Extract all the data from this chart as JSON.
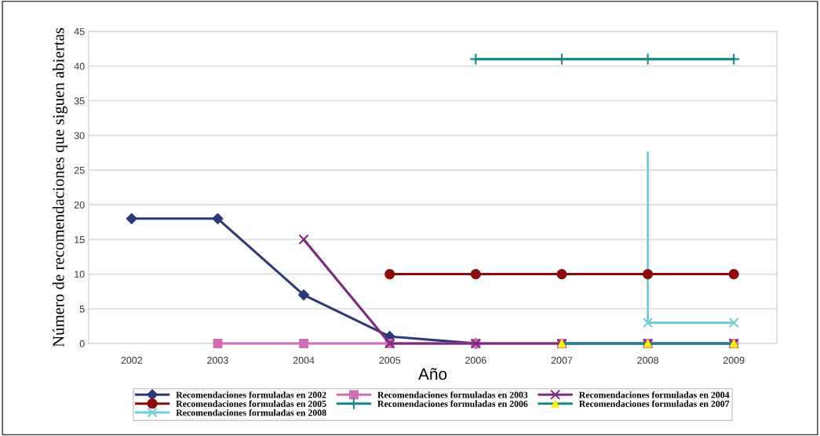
{
  "chart_data": {
    "type": "line",
    "xlabel": "Año",
    "ylabel": "Número de recomendaciones que siguen abiertas",
    "categories": [
      "2002",
      "2003",
      "2004",
      "2005",
      "2006",
      "2007",
      "2008",
      "2009"
    ],
    "series": [
      {
        "name": "Recomendaciones formuladas en 2002",
        "color": "#2e3a78",
        "marker": "diamond",
        "values": [
          18,
          18,
          7,
          1,
          0,
          null,
          null,
          null
        ]
      },
      {
        "name": "Recomendaciones formuladas en 2003",
        "color": "#d36bb5",
        "marker": "square",
        "values": [
          null,
          0,
          0,
          0,
          0,
          0,
          0,
          0
        ]
      },
      {
        "name": "Recomendaciones formuladas en 2004",
        "color": "#7b2c7e",
        "marker": "cross",
        "values": [
          null,
          null,
          15,
          0,
          0,
          0,
          0,
          0
        ]
      },
      {
        "name": "Recomendaciones formuladas en 2005",
        "color": "#8b0d0d",
        "marker": "circle",
        "values": [
          null,
          null,
          null,
          10,
          10,
          10,
          10,
          10
        ]
      },
      {
        "name": "Recomendaciones formuladas en 2006",
        "color": "#178a86",
        "marker": "plus",
        "values": [
          null,
          null,
          null,
          null,
          41,
          41,
          41,
          41
        ]
      },
      {
        "name": "Recomendaciones formuladas en 2007",
        "color": "#178a86",
        "marker": "triangle",
        "colors": [
          null,
          null,
          null,
          null,
          null,
          "#ffee00",
          "#ffee00",
          "#ffee00"
        ],
        "values": [
          null,
          null,
          null,
          null,
          null,
          0,
          0,
          0
        ]
      },
      {
        "name": "Recomendaciones formuladas en 2008",
        "color": "#6fcfd6",
        "marker": "cross",
        "values": [
          null,
          null,
          null,
          null,
          null,
          null,
          3,
          3
        ],
        "errors": [
          null,
          null,
          null,
          null,
          null,
          null,
          [
            3,
            27.5
          ],
          null
        ]
      }
    ],
    "ylim": [
      0,
      45
    ],
    "yticks": [
      0,
      5,
      10,
      15,
      20,
      25,
      30,
      35,
      40,
      45
    ],
    "grid": "y",
    "legend": "bottom"
  }
}
